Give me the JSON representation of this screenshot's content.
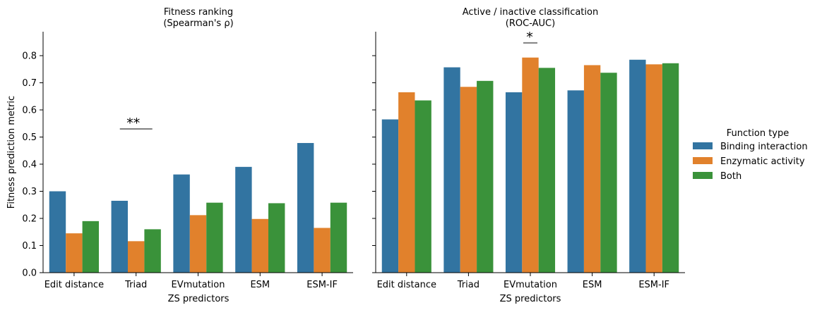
{
  "chart_data": [
    {
      "type": "bar",
      "title": "Fitness ranking\n(Spearman's ρ)",
      "xlabel": "ZS predictors",
      "ylabel": "Fitness prediction metric",
      "ylim": [
        0,
        0.89
      ],
      "yticks": [
        "0.0",
        "0.1",
        "0.2",
        "0.3",
        "0.4",
        "0.5",
        "0.6",
        "0.7",
        "0.8"
      ],
      "categories": [
        "Edit distance",
        "Triad",
        "EVmutation",
        "ESM",
        "ESM-IF"
      ],
      "series": [
        {
          "name": "Binding interaction",
          "color": "#3274a1",
          "values": [
            0.3,
            0.265,
            0.362,
            0.39,
            0.478
          ]
        },
        {
          "name": "Enzymatic activity",
          "color": "#e1812c",
          "values": [
            0.145,
            0.116,
            0.212,
            0.198,
            0.165
          ]
        },
        {
          "name": "Both",
          "color": "#3a923a",
          "values": [
            0.19,
            0.16,
            0.258,
            0.256,
            0.258
          ]
        }
      ],
      "annotations": [
        {
          "text": "**",
          "category": "Triad",
          "y": 0.53
        }
      ]
    },
    {
      "type": "bar",
      "title": "Active / inactive classification\n(ROC-AUC)",
      "xlabel": "ZS predictors",
      "ylabel": "",
      "ylim": [
        0,
        0.89
      ],
      "categories": [
        "Edit distance",
        "Triad",
        "EVmutation",
        "ESM",
        "ESM-IF"
      ],
      "series": [
        {
          "name": "Binding interaction",
          "color": "#3274a1",
          "values": [
            0.565,
            0.757,
            0.665,
            0.672,
            0.785
          ]
        },
        {
          "name": "Enzymatic activity",
          "color": "#e1812c",
          "values": [
            0.665,
            0.685,
            0.793,
            0.765,
            0.768
          ]
        },
        {
          "name": "Both",
          "color": "#3a923a",
          "values": [
            0.635,
            0.707,
            0.755,
            0.737,
            0.772
          ]
        }
      ],
      "annotations": [
        {
          "text": "*",
          "category": "EVmutation",
          "y": 0.847
        }
      ]
    }
  ],
  "legend": {
    "title": "Function type",
    "placement": "right",
    "items": [
      {
        "label": "Binding interaction",
        "color": "#3274a1"
      },
      {
        "label": "Enzymatic activity",
        "color": "#e1812c"
      },
      {
        "label": "Both",
        "color": "#3a923a"
      }
    ]
  }
}
